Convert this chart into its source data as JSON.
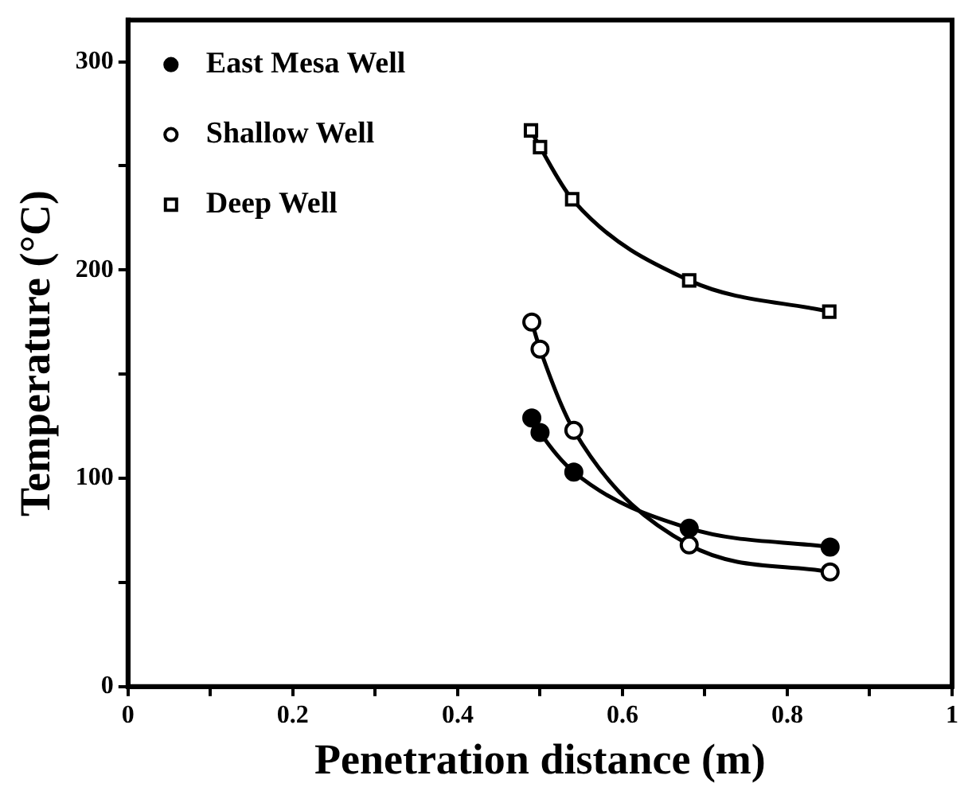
{
  "chart_data": {
    "type": "line",
    "xlabel": "Penetration distance (m)",
    "ylabel": "Temperature (°C)",
    "xlim": [
      0,
      1
    ],
    "ylim": [
      0,
      320
    ],
    "xticks": [
      0,
      {
        "value": 0.1,
        "label": null
      },
      {
        "value": 0.2,
        "label": "0.2"
      },
      {
        "value": 0.3,
        "label": null
      },
      {
        "value": 0.4,
        "label": "0.4"
      },
      {
        "value": 0.5,
        "label": null
      },
      {
        "value": 0.6,
        "label": "0.6"
      },
      {
        "value": 0.7,
        "label": null
      },
      {
        "value": 0.8,
        "label": "0.8"
      },
      {
        "value": 0.9,
        "label": null
      },
      1
    ],
    "yticks": [
      0,
      {
        "value": 50,
        "label": null
      },
      100,
      {
        "value": 150,
        "label": null
      },
      200,
      {
        "value": 250,
        "label": null
      },
      300
    ],
    "grid": false,
    "legend": "top left",
    "line_style": "solid",
    "series": [
      {
        "name": "East Mesa Well",
        "color": "#000000",
        "marker": "circle",
        "x": [
          0.49,
          0.5,
          0.541,
          0.681,
          0.852
        ],
        "values": [
          129,
          122,
          103,
          76,
          67
        ]
      },
      {
        "name": "Shallow Well",
        "color": "#000000",
        "marker": "circle",
        "x": [
          0.49,
          0.5,
          0.541,
          0.681,
          0.852
        ],
        "values": [
          175,
          162,
          123,
          68,
          55
        ]
      },
      {
        "name": "Deep Well",
        "color": "#000000",
        "marker": "square",
        "x": [
          0.489,
          0.5,
          0.539,
          0.681,
          0.851
        ],
        "values": [
          267,
          259,
          234,
          195,
          180
        ]
      }
    ]
  }
}
